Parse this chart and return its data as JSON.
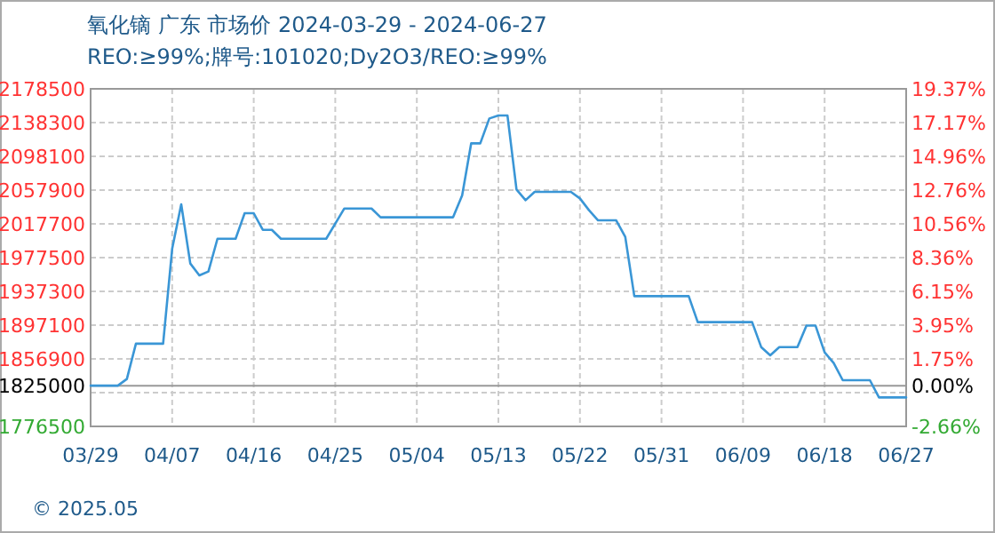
{
  "chart_data": {
    "type": "line",
    "title": "氧化镝 广东 市场价 2024-03-29 - 2024-06-27",
    "subtitle": "REO:≥99%;牌号:101020;Dy2O3/REO:≥99%",
    "x": [
      "2024-03-29",
      "2024-04-01",
      "2024-04-02",
      "2024-04-03",
      "2024-04-06",
      "2024-04-07",
      "2024-04-08",
      "2024-04-09",
      "2024-04-10",
      "2024-04-11",
      "2024-04-12",
      "2024-04-14",
      "2024-04-15",
      "2024-04-16",
      "2024-04-17",
      "2024-04-18",
      "2024-04-19",
      "2024-04-24",
      "2024-04-26",
      "2024-04-29",
      "2024-04-30",
      "2024-05-08",
      "2024-05-09",
      "2024-05-10",
      "2024-05-11",
      "2024-05-12",
      "2024-05-13",
      "2024-05-14",
      "2024-05-15",
      "2024-05-16",
      "2024-05-17",
      "2024-05-21",
      "2024-05-22",
      "2024-05-23",
      "2024-05-24",
      "2024-05-26",
      "2024-05-27",
      "2024-05-28",
      "2024-06-03",
      "2024-06-04",
      "2024-06-10",
      "2024-06-11",
      "2024-06-12",
      "2024-06-13",
      "2024-06-15",
      "2024-06-16",
      "2024-06-17",
      "2024-06-18",
      "2024-06-19",
      "2024-06-20",
      "2024-06-23",
      "2024-06-24",
      "2024-06-27"
    ],
    "series": [
      {
        "color": "#3a96d6",
        "values": [
          1825000,
          1825000,
          1833000,
          1875000,
          1875000,
          1988000,
          2041000,
          1970500,
          1956300,
          1961000,
          2000000,
          2000000,
          2030400,
          2030400,
          2010600,
          2010600,
          2000000,
          2000000,
          2036000,
          2036000,
          2025500,
          2025500,
          2051500,
          2113600,
          2113600,
          2143200,
          2146800,
          2146800,
          2058600,
          2045900,
          2055800,
          2055800,
          2048000,
          2034000,
          2021900,
          2021900,
          2002200,
          1931600,
          1931600,
          1900700,
          1900700,
          1871000,
          1861100,
          1871000,
          1871000,
          1896500,
          1896500,
          1864700,
          1852000,
          1831500,
          1831500,
          1811000,
          1811000
        ]
      }
    ],
    "xlim": [
      "2024-03-29",
      "2024-06-27"
    ],
    "xticks": [
      {
        "value": "2024-03-29",
        "label": "03/29"
      },
      {
        "value": "2024-04-07",
        "label": "04/07"
      },
      {
        "value": "2024-04-16",
        "label": "04/16"
      },
      {
        "value": "2024-04-25",
        "label": "04/25"
      },
      {
        "value": "2024-05-04",
        "label": "05/04"
      },
      {
        "value": "2024-05-13",
        "label": "05/13"
      },
      {
        "value": "2024-05-22",
        "label": "05/22"
      },
      {
        "value": "2024-05-31",
        "label": "05/31"
      },
      {
        "value": "2024-06-09",
        "label": "06/09"
      },
      {
        "value": "2024-06-18",
        "label": "06/18"
      },
      {
        "value": "2024-06-27",
        "label": "06/27"
      }
    ],
    "ylim": [
      1776500,
      2178500
    ],
    "yticks": [
      1776500,
      {
        "value": 1816700,
        "label": null
      },
      1825000,
      1856900,
      1897100,
      1937300,
      1977500,
      2017700,
      2057900,
      2098100,
      2138300,
      2178500
    ],
    "y2lim": [
      -2.66,
      19.37
    ],
    "y2ticks": [
      {
        "value": -2.66,
        "label": "-2.66%"
      },
      {
        "value": 0,
        "label": "0.00%"
      },
      {
        "value": 1.75,
        "label": "1.75%"
      },
      {
        "value": 3.95,
        "label": "3.95%"
      },
      {
        "value": 6.15,
        "label": "6.15%"
      },
      {
        "value": 8.36,
        "label": "8.36%"
      },
      {
        "value": 10.56,
        "label": "10.56%"
      },
      {
        "value": 12.76,
        "label": "12.76%"
      },
      {
        "value": 14.96,
        "label": "14.96%"
      },
      {
        "value": 17.17,
        "label": "17.17%"
      },
      {
        "value": 19.37,
        "label": "19.37%"
      }
    ],
    "ref_lines": [
      {
        "axis": "y",
        "value": 1825000,
        "color": "#999999"
      }
    ],
    "grid": true,
    "annotations": [
      "© 2025.05"
    ]
  }
}
